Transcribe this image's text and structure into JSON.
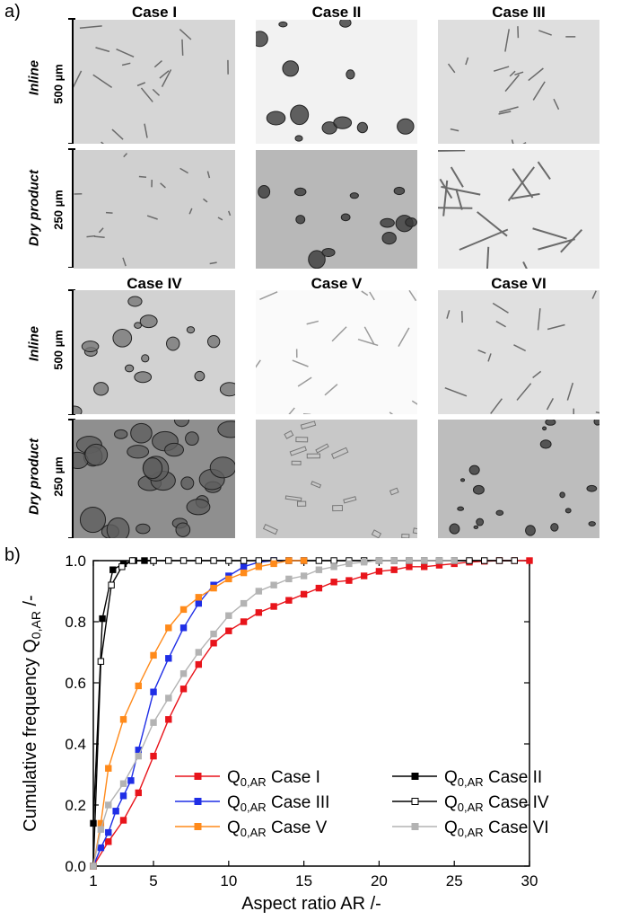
{
  "panel_a": {
    "label": "a)",
    "columns_top": [
      "Case I",
      "Case II",
      "Case III"
    ],
    "columns_bottom": [
      "Case IV",
      "Case V",
      "Case VI"
    ],
    "row_labels": {
      "inline": "Inline",
      "dry": "Dry product"
    },
    "scale_labels": {
      "inline": "500 µm",
      "dry": "250 µm"
    },
    "images": [
      {
        "case": "Case I",
        "row": "Inline",
        "bg": "#d6d6d6",
        "particle": "needle"
      },
      {
        "case": "Case II",
        "row": "Inline",
        "bg": "#f2f2f2",
        "particle": "block-dark"
      },
      {
        "case": "Case III",
        "row": "Inline",
        "bg": "#dedede",
        "particle": "needle"
      },
      {
        "case": "Case I",
        "row": "Dry product",
        "bg": "#d0d0d0",
        "particle": "needle-small"
      },
      {
        "case": "Case II",
        "row": "Dry product",
        "bg": "#b8b8b8",
        "particle": "block-dark"
      },
      {
        "case": "Case III",
        "row": "Dry product",
        "bg": "#ececec",
        "particle": "needle-long"
      },
      {
        "case": "Case IV",
        "row": "Inline",
        "bg": "#d2d2d2",
        "particle": "blob"
      },
      {
        "case": "Case V",
        "row": "Inline",
        "bg": "#fafafa",
        "particle": "needle-light"
      },
      {
        "case": "Case VI",
        "row": "Inline",
        "bg": "#e0e0e0",
        "particle": "needle"
      },
      {
        "case": "Case IV",
        "row": "Dry product",
        "bg": "#8f8f8f",
        "particle": "agglomerate"
      },
      {
        "case": "Case V",
        "row": "Dry product",
        "bg": "#c8c8c8",
        "particle": "prism"
      },
      {
        "case": "Case VI",
        "row": "Dry product",
        "bg": "#bdbdbd",
        "particle": "dark-mixed"
      }
    ]
  },
  "panel_b_label": "b)",
  "chart_data": {
    "type": "line",
    "title": "",
    "xlabel": "Aspect ratio AR /-",
    "ylabel_main": "Cumulative frequency Q",
    "ylabel_sub": "0,AR",
    "ylabel_unit": " /-",
    "xlim": [
      1,
      30
    ],
    "ylim": [
      0.0,
      1.0
    ],
    "xticks": [
      1,
      5,
      10,
      15,
      20,
      25,
      30
    ],
    "yticks": [
      0.0,
      0.2,
      0.4,
      0.6,
      0.8,
      1.0
    ],
    "ytick_labels": [
      "0.0",
      "0.2",
      "0.4",
      "0.6",
      "0.8",
      "1.0"
    ],
    "grid": false,
    "legend_position": "lower-right",
    "series": [
      {
        "legend_prefix": "Q",
        "legend_sub": "0,AR",
        "legend_name": " Case I",
        "color": "#e8141b",
        "marker": "filled",
        "x": [
          1,
          2,
          3,
          4,
          5,
          6,
          7,
          8,
          9,
          10,
          11,
          12,
          13,
          14,
          15,
          16,
          17,
          18,
          19,
          20,
          21,
          22,
          23,
          24,
          25,
          26,
          27,
          28,
          29,
          30
        ],
        "y": [
          0.0,
          0.08,
          0.15,
          0.24,
          0.36,
          0.48,
          0.58,
          0.66,
          0.73,
          0.77,
          0.8,
          0.83,
          0.85,
          0.87,
          0.89,
          0.91,
          0.93,
          0.935,
          0.95,
          0.965,
          0.97,
          0.98,
          0.98,
          0.985,
          0.99,
          0.995,
          0.998,
          1.0,
          1.0,
          1.0
        ]
      },
      {
        "legend_prefix": "Q",
        "legend_sub": "0,AR",
        "legend_name": " Case II",
        "color": "#000000",
        "marker": "filled",
        "x": [
          1,
          1.6,
          2.3,
          3.0,
          3.7,
          4.4,
          5.0
        ],
        "y": [
          0.14,
          0.81,
          0.97,
          0.99,
          1.0,
          1.0,
          1.0
        ]
      },
      {
        "legend_prefix": "Q",
        "legend_sub": "0,AR",
        "legend_name": " Case III",
        "color": "#1f2ee6",
        "marker": "filled",
        "x": [
          1,
          1.5,
          2,
          2.5,
          3,
          3.5,
          4,
          5,
          6,
          7,
          8,
          9,
          10,
          11,
          12,
          13,
          14,
          15
        ],
        "y": [
          0.0,
          0.06,
          0.11,
          0.18,
          0.23,
          0.28,
          0.38,
          0.57,
          0.68,
          0.78,
          0.86,
          0.92,
          0.95,
          0.98,
          0.995,
          1.0,
          1.0,
          1.0
        ]
      },
      {
        "legend_prefix": "Q",
        "legend_sub": "0,AR",
        "legend_name": " Case IV",
        "color": "#000000",
        "marker": "open",
        "x": [
          1,
          1.5,
          2.2,
          2.9,
          3.6,
          5,
          6,
          7,
          8,
          9,
          10,
          11,
          12,
          13,
          14,
          15,
          16,
          17,
          18,
          19,
          20,
          21,
          22,
          23,
          24,
          25,
          26,
          27,
          28,
          29
        ],
        "y": [
          0.0,
          0.67,
          0.92,
          0.98,
          1.0,
          1.0,
          1.0,
          1.0,
          1.0,
          1.0,
          1.0,
          1.0,
          1.0,
          1.0,
          1.0,
          1.0,
          1.0,
          1.0,
          1.0,
          1.0,
          1.0,
          1.0,
          1.0,
          1.0,
          1.0,
          1.0,
          1.0,
          1.0,
          1.0,
          1.0
        ]
      },
      {
        "legend_prefix": "Q",
        "legend_sub": "0,AR",
        "legend_name": " Case V",
        "color": "#ff8a1a",
        "marker": "filled",
        "x": [
          1,
          1.5,
          2,
          3,
          4,
          5,
          6,
          7,
          8,
          9,
          10,
          11,
          12,
          13,
          14,
          15
        ],
        "y": [
          0.0,
          0.14,
          0.32,
          0.48,
          0.59,
          0.69,
          0.78,
          0.84,
          0.88,
          0.91,
          0.94,
          0.96,
          0.98,
          0.99,
          1.0,
          1.0
        ]
      },
      {
        "legend_prefix": "Q",
        "legend_sub": "0,AR",
        "legend_name": " Case VI",
        "color": "#b3b3b3",
        "marker": "filled",
        "x": [
          1,
          1.5,
          2,
          3,
          4,
          5,
          6,
          7,
          8,
          9,
          10,
          11,
          12,
          13,
          14,
          15,
          16,
          17,
          18,
          19,
          20,
          21,
          22,
          23,
          24,
          25
        ],
        "y": [
          0.0,
          0.12,
          0.2,
          0.27,
          0.36,
          0.47,
          0.55,
          0.63,
          0.7,
          0.76,
          0.82,
          0.86,
          0.9,
          0.92,
          0.94,
          0.95,
          0.97,
          0.98,
          0.99,
          0.995,
          1.0,
          1.0,
          1.0,
          1.0,
          1.0,
          1.0
        ]
      }
    ]
  }
}
